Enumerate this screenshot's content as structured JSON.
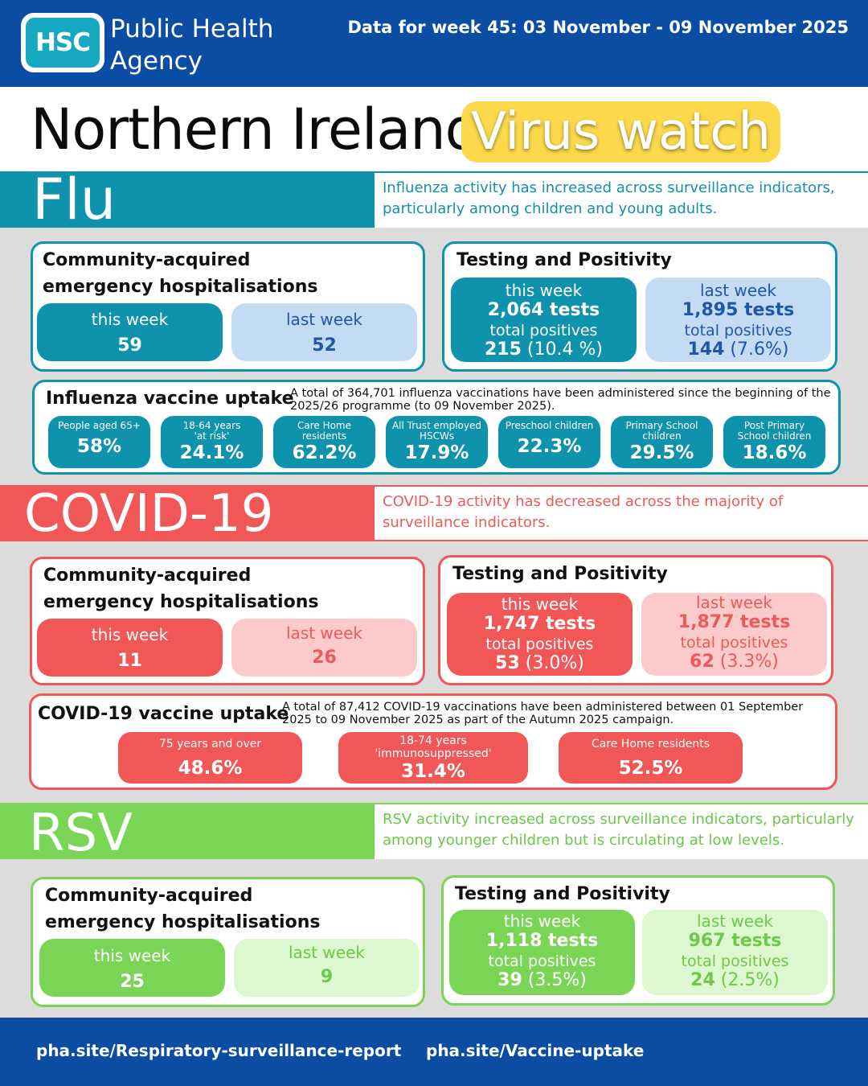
{
  "header": {
    "logo_text": "HSC",
    "agency_line1": "Public Health",
    "agency_line2": "Agency",
    "week_label": "Data for week 45: 03 November - 09 November 2025",
    "title": "Northern Ireland",
    "title_highlight": "Virus watch"
  },
  "flu": {
    "name": "Flu",
    "summary": "Influenza activity has increased across surveillance indicators, particularly among children and young adults.",
    "hosp": {
      "title_line1": "Community-acquired",
      "title_line2": "emergency hospitalisations",
      "this_week_label": "this week",
      "this_week_value": "59",
      "last_week_label": "last week",
      "last_week_value": "52"
    },
    "testing": {
      "title": "Testing and Positivity",
      "this_week_label": "this week",
      "this_week_tests": "2,064 tests",
      "this_week_pos_label": "total positives",
      "this_week_pos": "215",
      "this_week_pct": " (10.4 %)",
      "last_week_label": "last week",
      "last_week_tests": "1,895 tests",
      "last_week_pos_label": "total positives",
      "last_week_pos": "144",
      "last_week_pct": " (7.6%)"
    },
    "vaccine": {
      "title": "Influenza vaccine uptake",
      "note": "A total of 364,701 influenza vaccinations have been administered since the beginning of the 2025/26 programme (to 09 November 2025).",
      "groups": [
        {
          "l1": "People aged 65+",
          "l2": "",
          "value": "58%"
        },
        {
          "l1": "18-64 years",
          "l2": "'at risk'",
          "value": "24.1%"
        },
        {
          "l1": "Care Home",
          "l2": "residents",
          "value": "62.2%"
        },
        {
          "l1": "All Trust employed",
          "l2": "HSCWs",
          "value": "17.9%"
        },
        {
          "l1": "Preschool children",
          "l2": "",
          "value": "22.3%"
        },
        {
          "l1": "Primary School",
          "l2": "children",
          "value": "29.5%"
        },
        {
          "l1": "Post Primary",
          "l2": "School children",
          "value": "18.6%"
        }
      ]
    }
  },
  "covid": {
    "name": "COVID-19",
    "summary": "COVID-19 activity has decreased across the majority of surveillance indicators.",
    "hosp": {
      "title_line1": "Community-acquired",
      "title_line2": "emergency hospitalisations",
      "this_week_label": "this week",
      "this_week_value": "11",
      "last_week_label": "last week",
      "last_week_value": "26"
    },
    "testing": {
      "title": "Testing and Positivity",
      "this_week_label": "this week",
      "this_week_tests": "1,747 tests",
      "this_week_pos_label": "total positives",
      "this_week_pos": "53",
      "this_week_pct": " (3.0%)",
      "last_week_label": "last week",
      "last_week_tests": "1,877 tests",
      "last_week_pos_label": "total positives",
      "last_week_pos": "62",
      "last_week_pct": " (3.3%)"
    },
    "vaccine": {
      "title": "COVID-19 vaccine uptake",
      "note": "A total of 87,412 COVID-19 vaccinations have been administered between 01 September 2025 to 09 November 2025 as part of the Autumn 2025 campaign.",
      "groups": [
        {
          "l1": "75 years and over",
          "l2": "",
          "value": "48.6%"
        },
        {
          "l1": "18-74 years",
          "l2": "'immunosuppressed'",
          "value": "31.4%"
        },
        {
          "l1": "Care Home residents",
          "l2": "",
          "value": "52.5%"
        }
      ]
    }
  },
  "rsv": {
    "name": "RSV",
    "summary": "RSV activity increased across surveillance indicators, particularly among younger children but is circulating at low levels.",
    "hosp": {
      "title_line1": "Community-acquired",
      "title_line2": "emergency hospitalisations",
      "this_week_label": "this week",
      "this_week_value": "25",
      "last_week_label": "last week",
      "last_week_value": "9"
    },
    "testing": {
      "title": "Testing and Positivity",
      "this_week_label": "this week",
      "this_week_tests": "1,118 tests",
      "this_week_pos_label": "total positives",
      "this_week_pos": "39",
      "this_week_pct": " (3.5%)",
      "last_week_label": "last week",
      "last_week_tests": "967 tests",
      "last_week_pos_label": "total positives",
      "last_week_pos": "24",
      "last_week_pct": " (2.5%)"
    }
  },
  "footer": {
    "link1": "pha.site/Respiratory-surveillance-report",
    "link2": "pha.site/Vaccine-uptake"
  },
  "colors": {
    "brand_blue": "#0a4da3",
    "flu": "#0f93ad",
    "covid": "#f25757",
    "rsv": "#7ad556",
    "highlight": "#fcd94b"
  }
}
